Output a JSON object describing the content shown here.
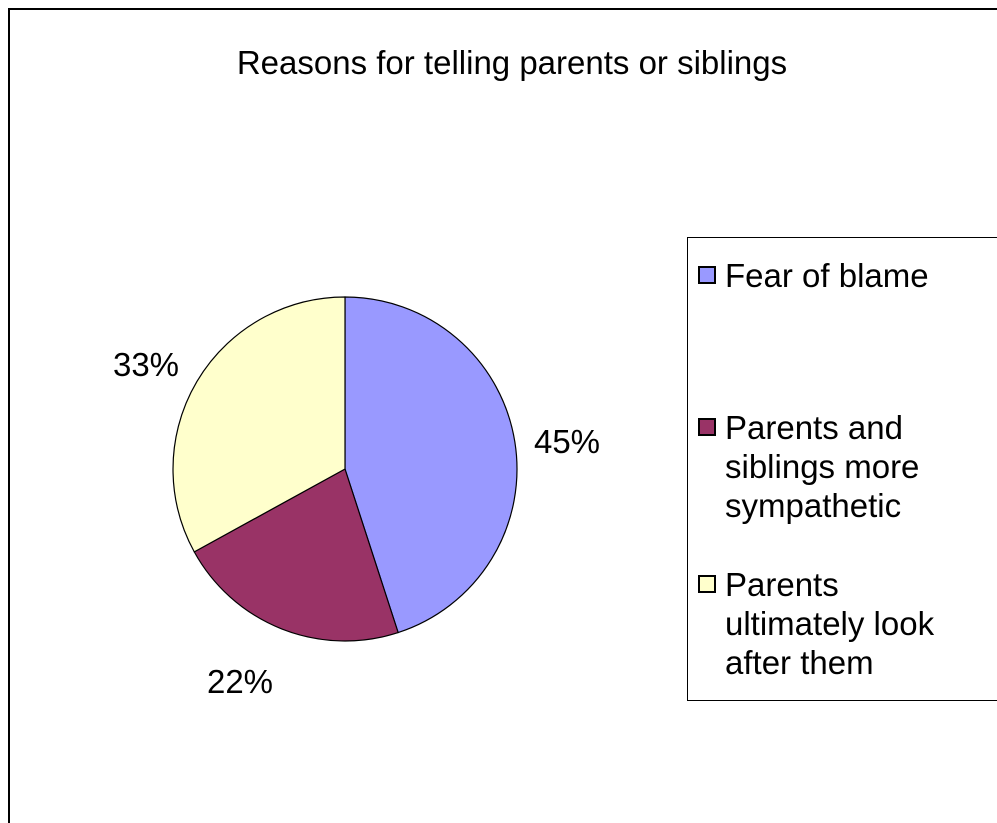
{
  "chart_data": {
    "type": "pie",
    "title": "Reasons for telling parents or siblings",
    "categories": [
      "Fear of blame",
      "Parents and siblings more sympathetic",
      "Parents ultimately look after them"
    ],
    "values": [
      45,
      22,
      33
    ],
    "data_labels": [
      "45%",
      "22%",
      "33%"
    ],
    "colors": [
      "#9999FF",
      "#993366",
      "#FFFFCC"
    ],
    "legend_position": "right"
  }
}
